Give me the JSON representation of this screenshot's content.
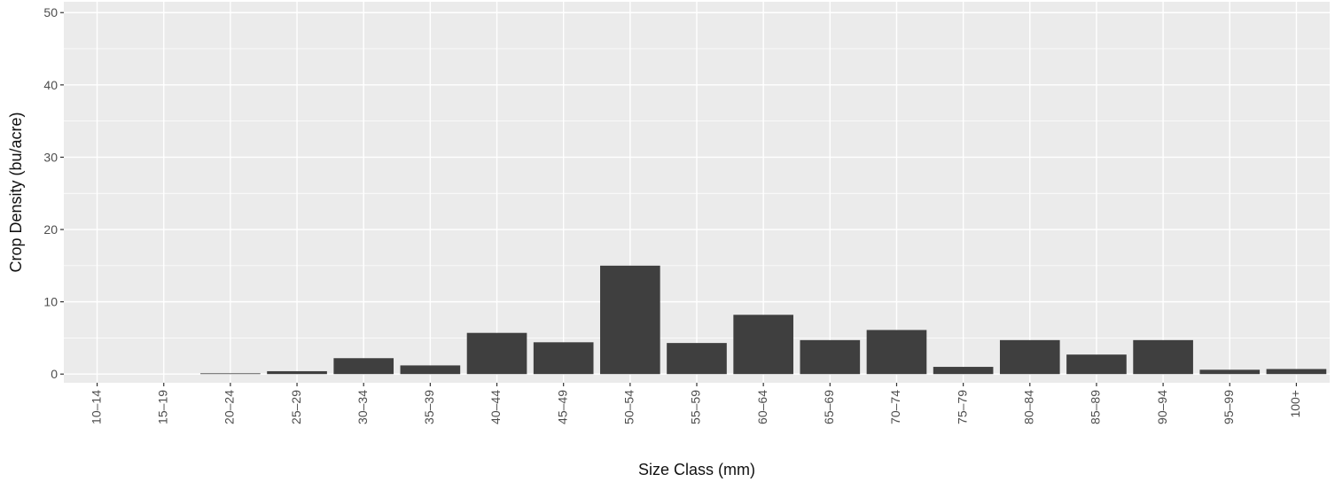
{
  "chart_data": {
    "type": "bar",
    "title": "",
    "xlabel": "Size Class (mm)",
    "ylabel": "Crop Density (bu/acre)",
    "ylim": [
      -1.2,
      51.5
    ],
    "yticks": [
      0,
      10,
      20,
      30,
      40,
      50
    ],
    "ytick_labels": [
      "0",
      "10",
      "20",
      "30",
      "40",
      "50"
    ],
    "categories": [
      "10–14",
      "15–19",
      "20–24",
      "25–29",
      "30–34",
      "35–39",
      "40–44",
      "45–49",
      "50–54",
      "55–59",
      "60–64",
      "65–69",
      "70–74",
      "75–79",
      "80–84",
      "85–89",
      "90–94",
      "95–99",
      "100+"
    ],
    "values": [
      0,
      0,
      0.1,
      0.4,
      2.2,
      1.2,
      5.7,
      4.4,
      15.0,
      4.3,
      8.2,
      4.7,
      6.1,
      1.0,
      4.7,
      2.7,
      4.7,
      0.6,
      0.7
    ],
    "grid": true,
    "legend": "none",
    "colors": {
      "bar": "#3f3f3f",
      "panel": "#ebebeb",
      "grid": "#ffffff",
      "tick_label": "#4d4d4d",
      "axis_title": "#111111"
    }
  }
}
